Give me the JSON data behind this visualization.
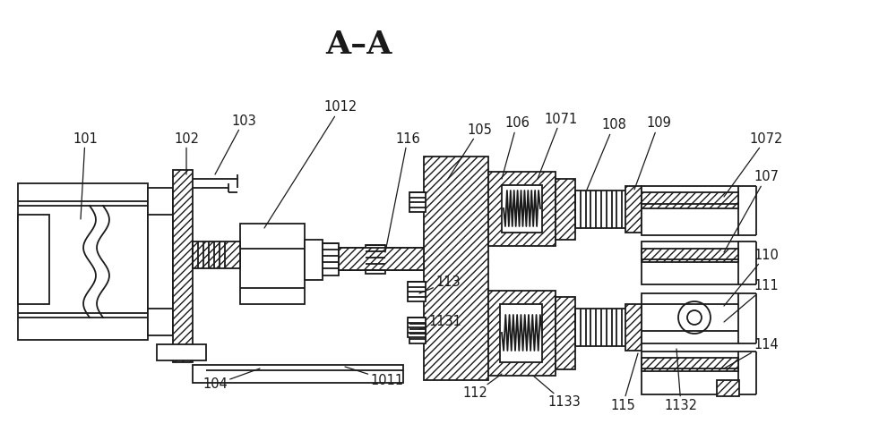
{
  "title": "A–A",
  "bg": "#ffffff",
  "lc": "#1a1a1a",
  "lw": 1.3
}
